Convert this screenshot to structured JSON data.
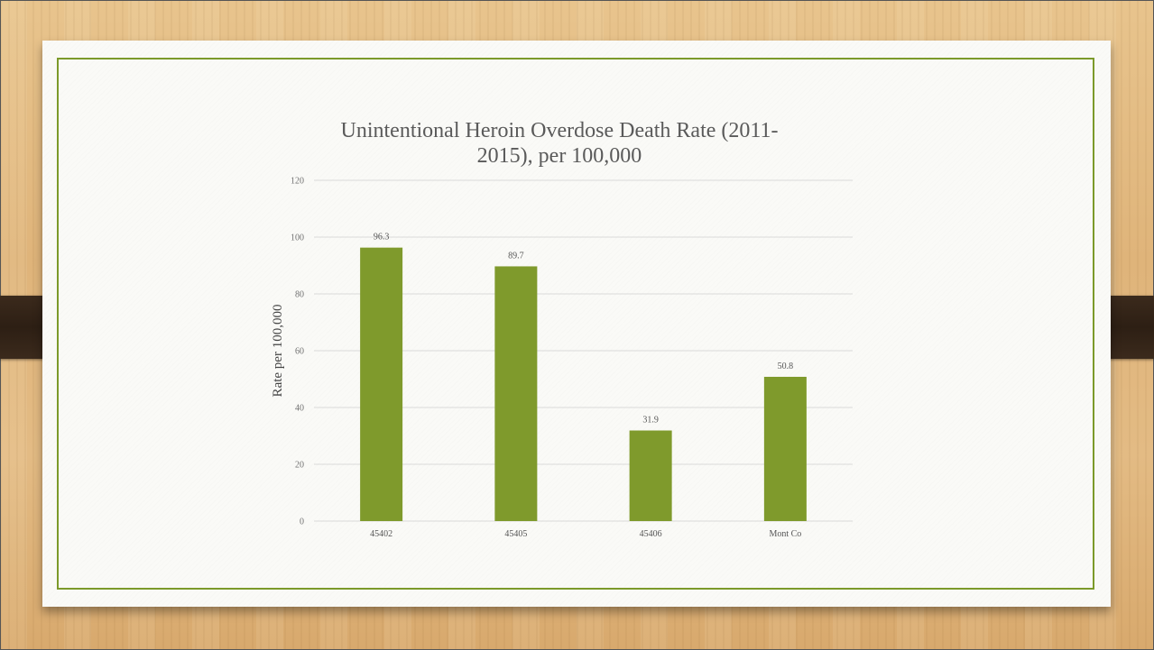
{
  "chart_data": {
    "type": "bar",
    "title_lines": [
      "Unintentional Heroin Overdose Death Rate (2011-",
      "2015), per 100,000"
    ],
    "xlabel": "",
    "ylabel": "Rate per 100,000",
    "categories": [
      "45402",
      "45405",
      "45406",
      "Mont Co"
    ],
    "values": [
      96.3,
      89.7,
      31.9,
      50.8
    ],
    "value_labels": [
      "96.3",
      "89.7",
      "31.9",
      "50.8"
    ],
    "ylim": [
      0,
      120
    ],
    "yticks": [
      "0",
      "20",
      "40",
      "60",
      "80",
      "100",
      "120"
    ],
    "grid": true,
    "legend": "none",
    "bar_color": "#7f9a2c"
  },
  "colors": {
    "frame_border": "#7c9a2a",
    "paper": "#fafaf7",
    "wood": "#e3bb84",
    "strap": "#2d1f14"
  }
}
